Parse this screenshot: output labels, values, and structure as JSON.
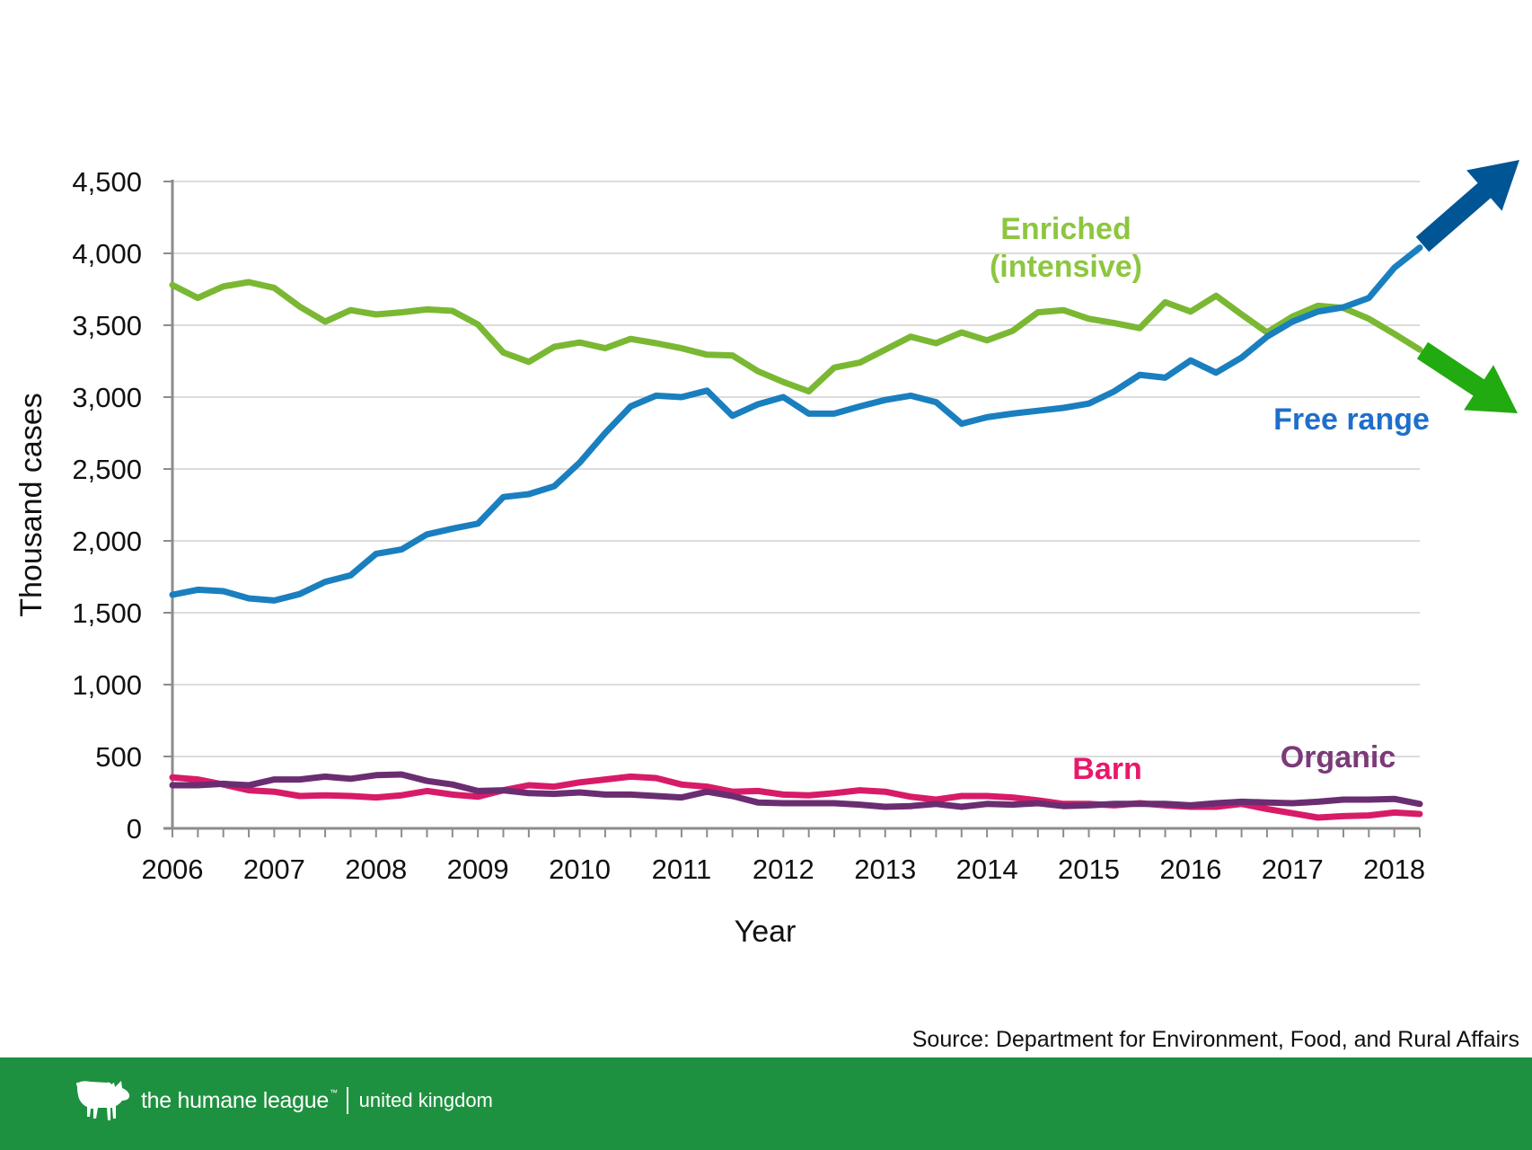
{
  "chart_data": {
    "type": "line",
    "title": "",
    "xlabel": "Year",
    "ylabel": "Thousand cases",
    "ylim": [
      0,
      4500
    ],
    "yticks": [
      0,
      500,
      1000,
      1500,
      2000,
      2500,
      3000,
      3500,
      4000,
      4500
    ],
    "ytick_labels": [
      "0",
      "500",
      "1,000",
      "1,500",
      "2,000",
      "2,500",
      "3,000",
      "3,500",
      "4,000",
      "4,500"
    ],
    "xtick_labels": [
      "2006",
      "2007",
      "2008",
      "2009",
      "2010",
      "2011",
      "2012",
      "2013",
      "2014",
      "2015",
      "2016",
      "2017",
      "2018"
    ],
    "x_frequency": "quarterly",
    "x_start": "2006 Q1",
    "n_points": 50,
    "grid": true,
    "series": [
      {
        "name": "Enriched (intensive)",
        "label_lines": [
          "Enriched",
          "(intensive)"
        ],
        "color": "#7ab833",
        "label_color": "#8dc63f",
        "values": [
          3780,
          3690,
          3770,
          3800,
          3760,
          3630,
          3525,
          3605,
          3575,
          3590,
          3610,
          3600,
          3505,
          3310,
          3245,
          3350,
          3380,
          3340,
          3405,
          3375,
          3340,
          3295,
          3290,
          3180,
          3105,
          3040,
          3205,
          3240,
          3330,
          3420,
          3375,
          3450,
          3395,
          3460,
          3590,
          3605,
          3545,
          3515,
          3480,
          3660,
          3595,
          3705,
          3575,
          3450,
          3560,
          3635,
          3620,
          3545,
          3440,
          3330
        ]
      },
      {
        "name": "Free range",
        "label_lines": [
          "Free range"
        ],
        "color": "#1a7fbf",
        "label_color": "#1f6fc9",
        "values": [
          1625,
          1660,
          1650,
          1600,
          1585,
          1630,
          1715,
          1760,
          1910,
          1940,
          2045,
          2085,
          2120,
          2305,
          2325,
          2380,
          2545,
          2750,
          2935,
          3010,
          3000,
          3045,
          2870,
          2950,
          3000,
          2885,
          2885,
          2935,
          2980,
          3010,
          2965,
          2815,
          2860,
          2885,
          2905,
          2925,
          2955,
          3040,
          3155,
          3135,
          3255,
          3170,
          3275,
          3420,
          3525,
          3595,
          3625,
          3690,
          3900,
          4040
        ]
      },
      {
        "name": "Barn",
        "label_lines": [
          "Barn"
        ],
        "color": "#d81b68",
        "label_color": "#e8186a",
        "values": [
          355,
          340,
          305,
          265,
          255,
          225,
          230,
          225,
          215,
          230,
          260,
          235,
          220,
          265,
          300,
          290,
          320,
          340,
          360,
          350,
          305,
          290,
          255,
          260,
          235,
          230,
          245,
          265,
          255,
          220,
          200,
          225,
          225,
          215,
          195,
          170,
          170,
          160,
          175,
          160,
          150,
          150,
          170,
          135,
          105,
          75,
          85,
          90,
          110,
          100
        ]
      },
      {
        "name": "Organic",
        "label_lines": [
          "Organic"
        ],
        "color": "#6b2d72",
        "label_color": "#7b3a78",
        "values": [
          300,
          300,
          310,
          300,
          340,
          340,
          360,
          345,
          370,
          375,
          330,
          305,
          260,
          265,
          245,
          240,
          250,
          235,
          235,
          225,
          215,
          255,
          225,
          180,
          175,
          175,
          175,
          165,
          150,
          155,
          170,
          150,
          170,
          165,
          175,
          155,
          160,
          170,
          170,
          170,
          160,
          175,
          185,
          180,
          175,
          185,
          200,
          200,
          205,
          170
        ]
      }
    ],
    "annotations": [
      {
        "type": "arrow",
        "meaning": "free range trend up",
        "color": "#005595"
      },
      {
        "type": "arrow",
        "meaning": "enriched trend down",
        "color": "#22aa11"
      }
    ]
  },
  "source": "Source: Department for Environment, Food, and Rural Affairs",
  "footer": {
    "brand_name": "the humane league",
    "trademark": "™",
    "region": "united kingdom",
    "background": "#1e9140"
  }
}
